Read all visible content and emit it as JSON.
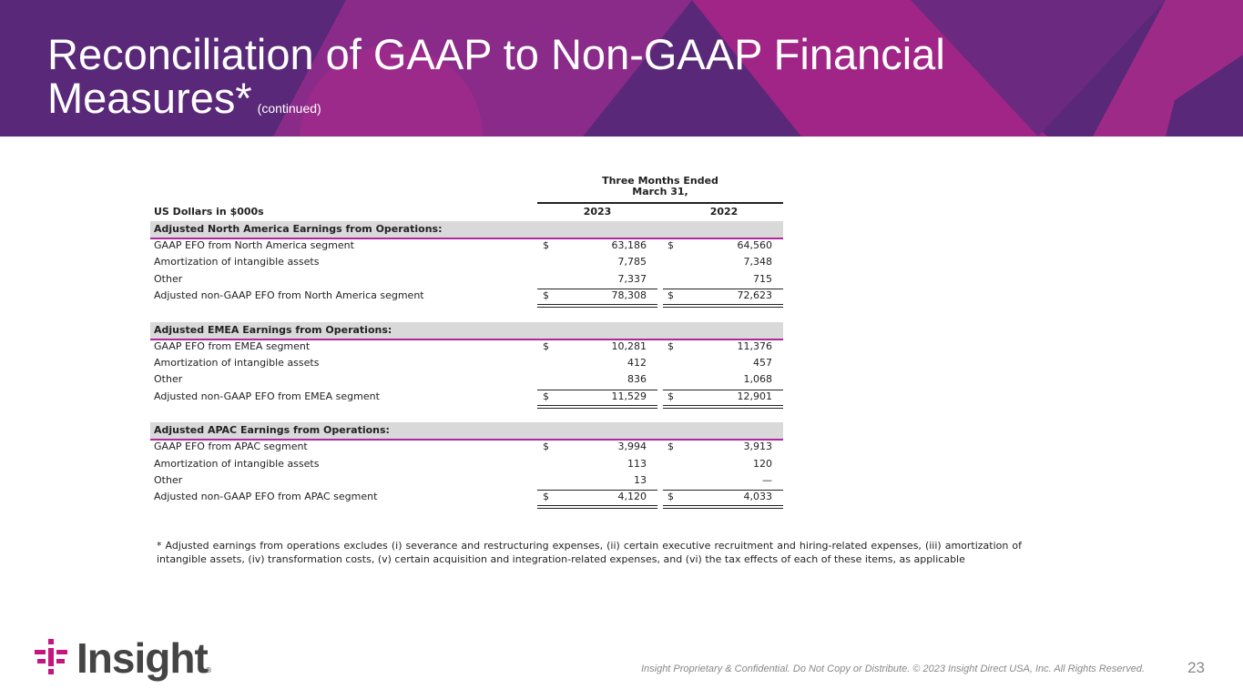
{
  "header": {
    "title": "Reconciliation of GAAP to Non-GAAP Financial Measures*",
    "subtitle": "(continued)"
  },
  "table": {
    "period": [
      "Three Months Ended",
      "March 31,"
    ],
    "unit_label": "US Dollars in $000s",
    "columns": [
      "2023",
      "2022"
    ],
    "currency": "$",
    "sections": [
      {
        "heading": "Adjusted North America Earnings from Operations:",
        "rows": [
          {
            "label": "GAAP EFO from North America segment",
            "values": [
              "63,186",
              "64,560"
            ]
          },
          {
            "label": "Amortization of intangible assets",
            "values": [
              "7,785",
              "7,348"
            ]
          },
          {
            "label": "Other",
            "values": [
              "7,337",
              "715"
            ]
          },
          {
            "label": "Adjusted non-GAAP EFO from North America segment",
            "values": [
              "78,308",
              "72,623"
            ]
          }
        ]
      },
      {
        "heading": "Adjusted EMEA Earnings from Operations:",
        "rows": [
          {
            "label": "GAAP EFO from EMEA segment",
            "values": [
              "10,281",
              "11,376"
            ]
          },
          {
            "label": "Amortization of intangible assets",
            "values": [
              "412",
              "457"
            ]
          },
          {
            "label": "Other",
            "values": [
              "836",
              "1,068"
            ]
          },
          {
            "label": "Adjusted non-GAAP EFO from EMEA segment",
            "values": [
              "11,529",
              "12,901"
            ]
          }
        ]
      },
      {
        "heading": "Adjusted APAC Earnings from Operations:",
        "rows": [
          {
            "label": "GAAP EFO from APAC segment",
            "values": [
              "3,994",
              "3,913"
            ]
          },
          {
            "label": "Amortization of intangible assets",
            "values": [
              "113",
              "120"
            ]
          },
          {
            "label": "Other",
            "values": [
              "13",
              "—"
            ]
          },
          {
            "label": "Adjusted non-GAAP EFO from APAC segment",
            "values": [
              "4,120",
              "4,033"
            ]
          }
        ]
      }
    ]
  },
  "footnote": "* Adjusted earnings from operations excludes (i) severance and restructuring expenses, (ii) certain executive recruitment and hiring-related expenses, (iii) amortization of intangible assets, (iv) transformation costs, (v) certain acquisition and integration-related expenses, and (vi) the tax effects of each of these items, as applicable",
  "footer": {
    "logo": "Insight",
    "logo_mark": "®",
    "confidential": "Insight Proprietary & Confidential. Do Not Copy or Distribute. © 2023 Insight Direct USA, Inc. All Rights Reserved.",
    "page_number": "23"
  }
}
